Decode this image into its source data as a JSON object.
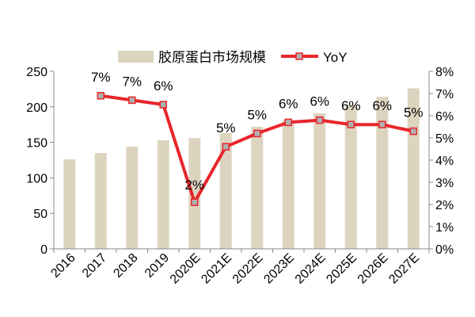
{
  "chart_data": {
    "type": "bar",
    "categories": [
      "2016",
      "2017",
      "2018",
      "2019",
      "2020E",
      "2021E",
      "2022E",
      "2023E",
      "2024E",
      "2025E",
      "2026E",
      "2027E"
    ],
    "series": [
      {
        "name": "胶原蛋白市场规模",
        "type": "bar",
        "axis": "left",
        "color": "#ddd4c0",
        "values": [
          126,
          135,
          144,
          153,
          156,
          163,
          172,
          181,
          191,
          202,
          214,
          226
        ]
      },
      {
        "name": "YoY",
        "type": "line",
        "axis": "right",
        "color": "#e8262b",
        "marker_color": "#b0b0b0",
        "values": [
          null,
          6.9,
          6.7,
          6.5,
          2.1,
          4.6,
          5.2,
          5.7,
          5.8,
          5.6,
          5.6,
          5.3
        ],
        "labels": [
          "",
          "7%",
          "7%",
          "6%",
          "2%",
          "5%",
          "5%",
          "6%",
          "6%",
          "6%",
          "6%",
          "5%"
        ]
      }
    ],
    "left_axis": {
      "min": 0,
      "max": 250,
      "ticks": [
        "0",
        "50",
        "100",
        "150",
        "200",
        "250"
      ]
    },
    "right_axis": {
      "min": 0,
      "max": 8,
      "ticks": [
        "0%",
        "1%",
        "2%",
        "3%",
        "4%",
        "5%",
        "6%",
        "7%",
        "8%"
      ]
    },
    "legend_position": "top",
    "grid": false
  }
}
